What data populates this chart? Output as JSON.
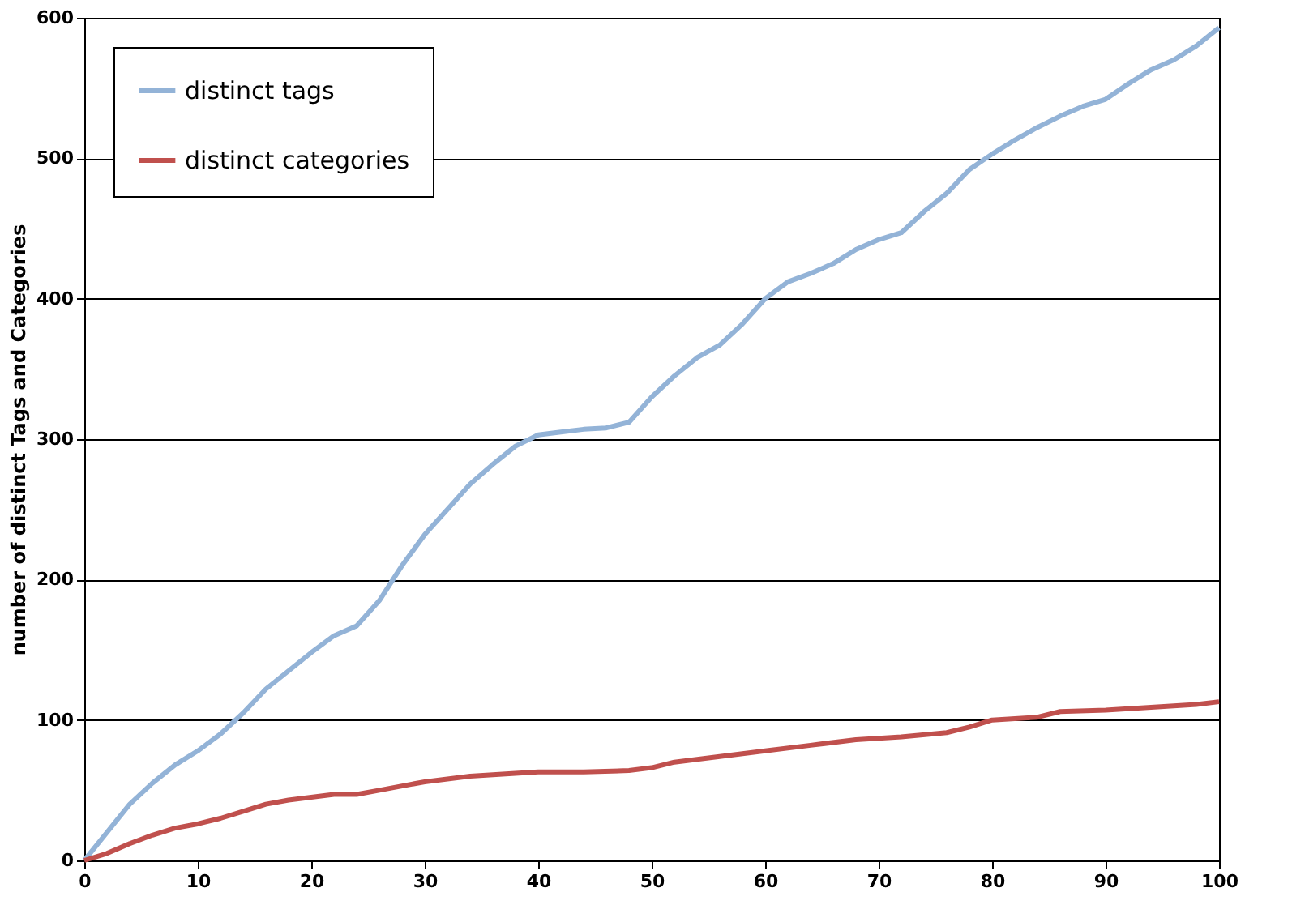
{
  "chart_data": {
    "type": "line",
    "ylabel": "number of distinct Tags and Categories",
    "xlim": [
      0,
      100
    ],
    "xticks": [
      0,
      10,
      20,
      30,
      40,
      50,
      60,
      70,
      80,
      90,
      100
    ],
    "ylim": [
      0,
      600
    ],
    "yticks": [
      0,
      100,
      200,
      300,
      400,
      500,
      600
    ],
    "grid": "y",
    "legend": "top left",
    "marker": "none",
    "line_style": "solid",
    "series": [
      {
        "name": "distinct tags",
        "color": "#93b3d7",
        "x": [
          0,
          2,
          4,
          6,
          8,
          10,
          12,
          14,
          16,
          18,
          20,
          22,
          24,
          26,
          28,
          30,
          32,
          34,
          36,
          38,
          40,
          42,
          44,
          46,
          48,
          50,
          52,
          54,
          56,
          58,
          60,
          62,
          64,
          66,
          68,
          70,
          72,
          74,
          76,
          78,
          80,
          82,
          84,
          86,
          88,
          90,
          92,
          94,
          96,
          98,
          100
        ],
        "values": [
          0,
          20,
          40,
          55,
          68,
          78,
          90,
          105,
          122,
          135,
          148,
          160,
          167,
          185,
          210,
          232,
          250,
          268,
          282,
          295,
          303,
          305,
          307,
          308,
          312,
          330,
          345,
          358,
          367,
          382,
          400,
          412,
          418,
          425,
          435,
          442,
          447,
          462,
          475,
          492,
          503,
          513,
          522,
          530,
          537,
          542,
          553,
          563,
          570,
          580,
          593
        ]
      },
      {
        "name": "distinct categories",
        "color": "#c0504d",
        "x": [
          0,
          2,
          4,
          6,
          8,
          10,
          12,
          14,
          16,
          18,
          20,
          22,
          24,
          26,
          28,
          30,
          32,
          34,
          36,
          38,
          40,
          44,
          48,
          50,
          52,
          54,
          56,
          58,
          60,
          64,
          68,
          72,
          76,
          78,
          80,
          84,
          86,
          90,
          94,
          98,
          100
        ],
        "values": [
          0,
          5,
          12,
          18,
          23,
          26,
          30,
          35,
          40,
          43,
          45,
          47,
          47,
          50,
          53,
          56,
          58,
          60,
          61,
          62,
          63,
          63,
          64,
          66,
          70,
          72,
          74,
          76,
          78,
          82,
          86,
          88,
          91,
          95,
          100,
          102,
          106,
          107,
          109,
          111,
          113
        ]
      }
    ]
  }
}
